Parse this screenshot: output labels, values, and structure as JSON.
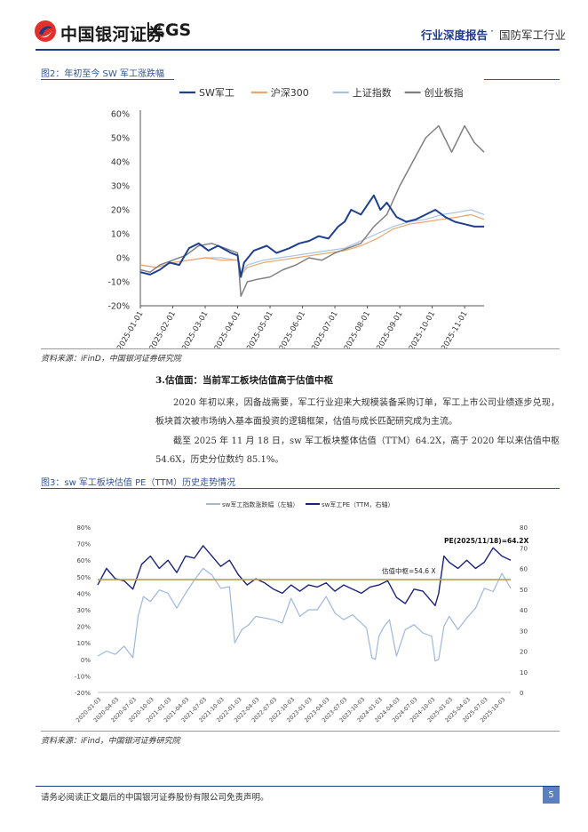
{
  "header": {
    "logo_text": "中国银河证券",
    "logo_latin": "CGS",
    "report_type": "行业深度报告",
    "separator": "·",
    "industry": "国防军工行业",
    "colors": {
      "brand_navy": "#1e3a8a",
      "logo_red": "#e0312b"
    }
  },
  "figure2": {
    "caption": "图2：年初至今 SW 军工涨跌幅",
    "source": "资料来源：iFinD，中国银河证券研究院"
  },
  "section": {
    "title": "3.估值面：当前军工板块估值高于估值中枢",
    "paragraphs": [
      "2020 年初以来，因备战需要，军工行业迎来大规模装备采购订单，军工上市公司业绩逐步兑现，板块首次被市场纳入基本面投资的逻辑框架，估值与成长匹配研究成为主流。",
      "截至 2025 年 11 月 18 日，sw 军工板块整体估值（TTM）64.2X，高于 2020 年以来估值中枢 54.6X，历史分位数约 85.1%。"
    ]
  },
  "figure3": {
    "caption": "图3：sw 军工板块估值 PE（TTM）历史走势情况",
    "source": "资料来源：iFind，中国银河证券研究院"
  },
  "chart_data": [
    {
      "type": "line",
      "title": "",
      "ylabel": "",
      "xlabel": "",
      "ylim": [
        -20,
        60
      ],
      "yticks": [
        "-20%",
        "-10%",
        "0%",
        "10%",
        "20%",
        "30%",
        "40%",
        "50%",
        "60%"
      ],
      "x_ticks": [
        "2025-01-01",
        "2025-02-01",
        "2025-03-01",
        "2025-04-01",
        "2025-05-01",
        "2025-06-01",
        "2025-07-01",
        "2025-08-01",
        "2025-09-01",
        "2025-10-01",
        "2025-11-01"
      ],
      "x_range": [
        0,
        10.6
      ],
      "legend": [
        "SW军工",
        "沪深300",
        "上证指数",
        "创业板指"
      ],
      "legend_position": "top",
      "series": [
        {
          "name": "SW军工",
          "color": "#1f3f8f",
          "width": 2,
          "x": [
            0,
            0.3,
            0.6,
            0.9,
            1.2,
            1.5,
            1.8,
            2.1,
            2.4,
            2.8,
            3.0,
            3.1,
            3.2,
            3.5,
            3.9,
            4.2,
            4.6,
            4.9,
            5.2,
            5.5,
            5.8,
            6.1,
            6.3,
            6.5,
            6.8,
            7.0,
            7.2,
            7.4,
            7.6,
            7.9,
            8.2,
            8.5,
            8.8,
            9.1,
            9.4,
            9.7,
            10.0,
            10.3,
            10.6
          ],
          "values": [
            -6,
            -7,
            -5,
            -2,
            -3,
            4,
            6,
            3,
            5,
            2,
            1,
            -8,
            -2,
            3,
            5,
            2,
            4,
            6,
            7,
            9,
            8,
            13,
            15,
            20,
            18,
            22,
            26,
            20,
            23,
            17,
            15,
            16,
            18,
            20,
            17,
            15,
            14,
            13,
            13
          ]
        },
        {
          "name": "沪深300",
          "color": "#e8a76a",
          "width": 1.2,
          "x": [
            0,
            0.5,
            1.0,
            1.5,
            2.0,
            2.5,
            3.0,
            3.1,
            3.3,
            3.8,
            4.3,
            4.8,
            5.3,
            5.8,
            6.3,
            6.8,
            7.3,
            7.8,
            8.3,
            8.8,
            9.3,
            9.8,
            10.2,
            10.6
          ],
          "values": [
            -3,
            -4,
            -2,
            -1,
            0,
            -1,
            -1,
            -7,
            -4,
            -2,
            -1,
            0,
            1,
            2,
            3,
            5,
            8,
            12,
            14,
            15,
            16,
            17,
            18,
            16
          ]
        },
        {
          "name": "上证指数",
          "color": "#a9c1e3",
          "width": 1.2,
          "x": [
            0,
            0.5,
            1.0,
            1.5,
            2.0,
            2.5,
            3.0,
            3.1,
            3.3,
            3.8,
            4.3,
            4.8,
            5.3,
            5.8,
            6.3,
            6.8,
            7.3,
            7.8,
            8.3,
            8.8,
            9.3,
            9.8,
            10.2,
            10.6
          ],
          "values": [
            -3,
            -4,
            -2,
            -1,
            0,
            0,
            -1,
            -6,
            -3,
            -1,
            0,
            1,
            2,
            3,
            4,
            7,
            10,
            13,
            15,
            16,
            18,
            19,
            20,
            18
          ]
        },
        {
          "name": "创业板指",
          "color": "#808080",
          "width": 1.5,
          "x": [
            0,
            0.3,
            0.6,
            1.0,
            1.4,
            1.8,
            2.2,
            2.6,
            3.0,
            3.1,
            3.3,
            3.6,
            4.0,
            4.4,
            4.8,
            5.2,
            5.6,
            6.0,
            6.4,
            6.8,
            7.2,
            7.6,
            8.0,
            8.4,
            8.8,
            9.2,
            9.6,
            10.0,
            10.3,
            10.6
          ],
          "values": [
            -5,
            -6,
            -3,
            -1,
            1,
            5,
            6,
            4,
            2,
            -16,
            -10,
            -9,
            -8,
            -5,
            -3,
            0,
            -1,
            2,
            4,
            6,
            13,
            18,
            30,
            40,
            50,
            55,
            44,
            55,
            48,
            44
          ]
        }
      ]
    },
    {
      "type": "line",
      "title": "",
      "legend": [
        "sw军工指数涨跌幅（左轴）",
        "sw军工PE（TTM，右轴）"
      ],
      "legend_position": "top",
      "y_left_ticks": [
        "-20%",
        "-10%",
        "0%",
        "10%",
        "20%",
        "30%",
        "40%",
        "50%",
        "60%",
        "70%",
        "80%"
      ],
      "ylim_left": [
        -20,
        80
      ],
      "y_right_ticks": [
        "0",
        "10",
        "20",
        "30",
        "40",
        "50",
        "60",
        "70",
        "80"
      ],
      "ylim_right": [
        0,
        80
      ],
      "x_ticks": [
        "2020-01-03",
        "2020-04-03",
        "2020-07-03",
        "2020-10-03",
        "2021-01-03",
        "2021-04-03",
        "2021-07-03",
        "2021-10-03",
        "2022-01-03",
        "2022-04-03",
        "2022-07-03",
        "2022-10-03",
        "2023-01-03",
        "2023-04-03",
        "2023-07-03",
        "2023-10-03",
        "2024-01-03",
        "2024-04-03",
        "2024-07-03",
        "2024-10-03",
        "2025-01-03",
        "2025-04-03",
        "2025-07-03",
        "2025-10-03"
      ],
      "x_range": [
        0,
        23.5
      ],
      "reference_line": {
        "label": "估值中枢=54.6 X",
        "value": 54.6,
        "axis": "right",
        "color": "#b5a055"
      },
      "annotation": "PE(2025/11/18)=64.2X",
      "series": [
        {
          "name": "sw军工指数涨跌幅（左轴）",
          "axis": "left",
          "color": "#9db7df",
          "width": 1.2,
          "x": [
            0,
            0.5,
            1,
            1.5,
            2,
            2.3,
            2.6,
            3,
            3.5,
            4,
            4.5,
            5,
            5.5,
            6,
            6.5,
            7,
            7.5,
            7.8,
            8.2,
            8.6,
            9,
            9.5,
            10,
            10.5,
            11,
            11.5,
            12,
            12.5,
            13,
            13.5,
            14,
            14.5,
            15,
            15.3,
            15.6,
            15.8,
            16,
            16.3,
            16.6,
            17,
            17.5,
            18,
            18.5,
            19,
            19.2,
            19.4,
            19.7,
            20,
            20.5,
            21,
            21.5,
            22,
            22.5,
            23,
            23.5
          ],
          "values": [
            2,
            5,
            3,
            8,
            1,
            26,
            38,
            35,
            42,
            40,
            31,
            40,
            48,
            55,
            51,
            43,
            44,
            10,
            18,
            21,
            26,
            25,
            24,
            22,
            37,
            26,
            30,
            30,
            38,
            28,
            24,
            27,
            22,
            19,
            1,
            0,
            14,
            20,
            24,
            2,
            18,
            21,
            16,
            14,
            -1,
            0,
            20,
            26,
            18,
            25,
            31,
            43,
            41,
            52,
            43
          ]
        },
        {
          "name": "sw军工PE（TTM，右轴）",
          "axis": "right",
          "color": "#1a237e",
          "width": 1.4,
          "x": [
            0,
            0.5,
            1,
            1.5,
            2,
            2.5,
            3,
            3.5,
            4,
            4.5,
            5,
            5.5,
            6,
            6.5,
            7,
            7.5,
            8,
            8.5,
            9,
            9.5,
            10,
            10.5,
            11,
            11.5,
            12,
            12.5,
            13,
            13.5,
            14,
            14.5,
            15,
            15.5,
            16,
            16.5,
            17,
            17.5,
            18,
            18.5,
            19,
            19.2,
            19.4,
            19.7,
            20,
            20.5,
            21,
            21.5,
            22,
            22.5,
            23,
            23.5
          ],
          "values": [
            52,
            60,
            55,
            54,
            50,
            62,
            66,
            60,
            64,
            58,
            66,
            65,
            71,
            66,
            61,
            64,
            57,
            52,
            55,
            53,
            50,
            48,
            52,
            49,
            52,
            51,
            53,
            49,
            52,
            50,
            48,
            51,
            52,
            54,
            46,
            43,
            50,
            49,
            44,
            42,
            48,
            66,
            63,
            60,
            64,
            60,
            63,
            70,
            66,
            64
          ]
        }
      ]
    }
  ],
  "footer": {
    "disclaimer": "请务必阅读正文最后的中国银河证券股份有限公司免责声明。",
    "page_number": "5"
  }
}
